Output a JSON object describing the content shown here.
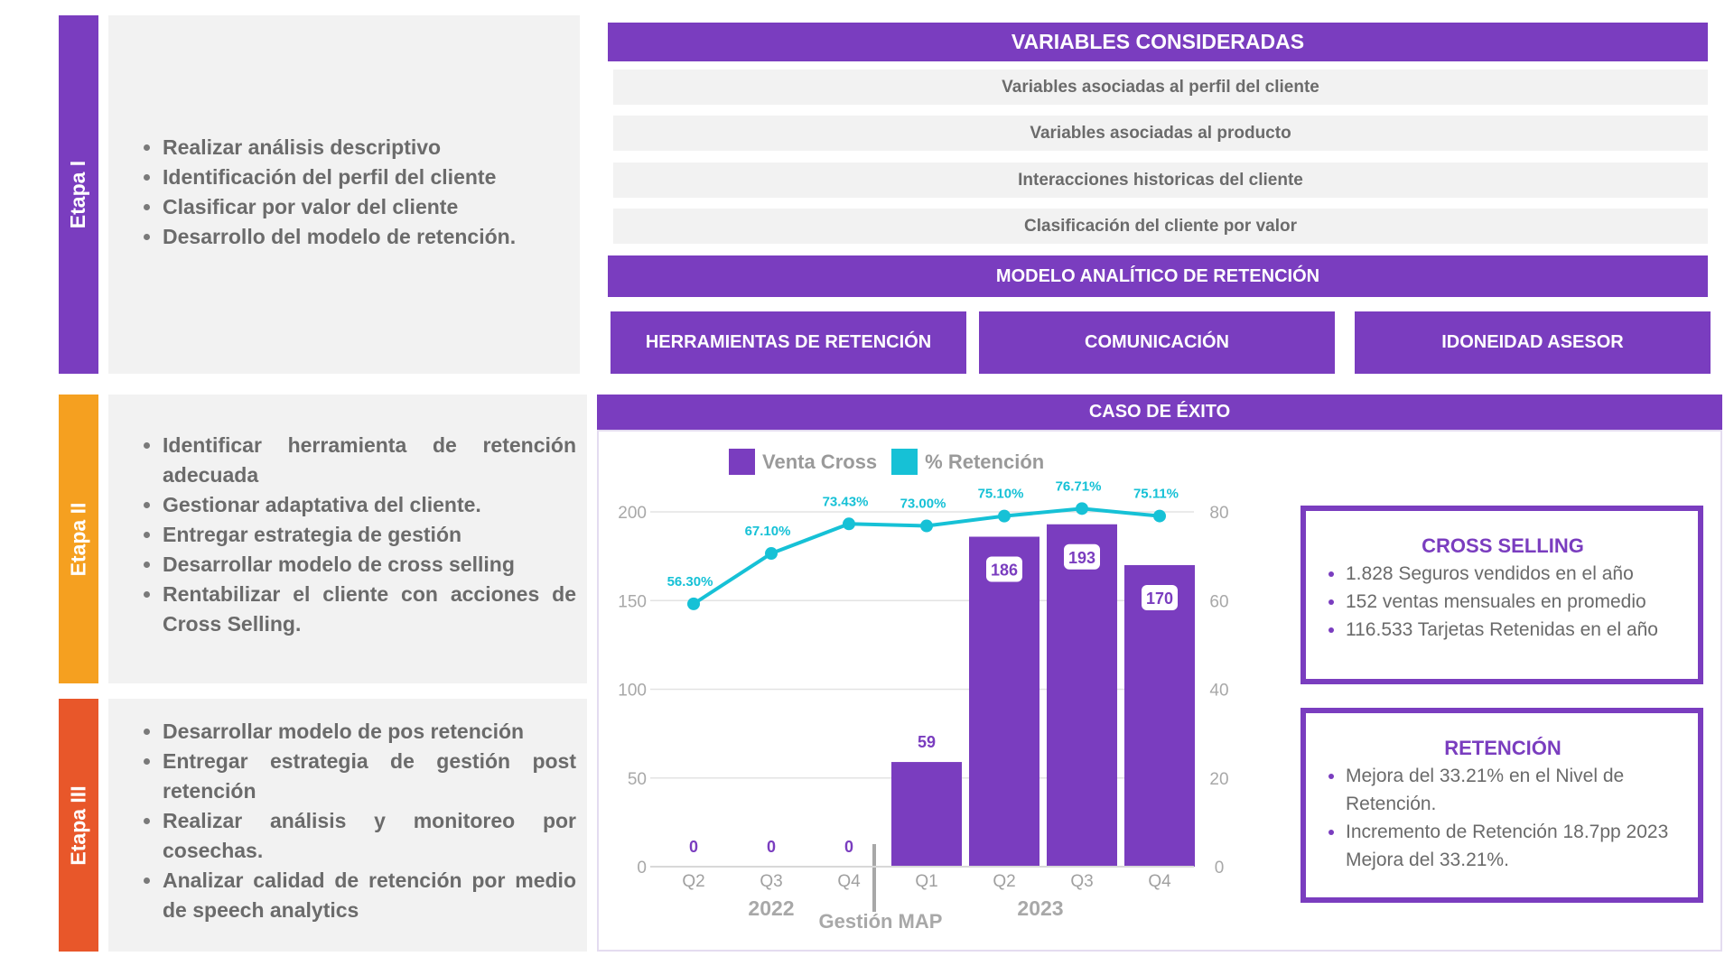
{
  "stages": [
    {
      "label": "Etapa I",
      "color": "#7a3dbf",
      "items": [
        "Realizar análisis descriptivo",
        "Identificación del perfil del cliente",
        "Clasificar por valor del cliente",
        "Desarrollo del modelo de retención."
      ]
    },
    {
      "label": "Etapa II",
      "color": "#f5a020",
      "items": [
        "Identificar herramienta de retención adecuada",
        "Gestionar adaptativa del cliente.",
        "Entregar estrategia de gestión",
        "Desarrollar modelo de cross selling",
        "Rentabilizar el cliente con acciones de Cross Selling."
      ]
    },
    {
      "label": "Etapa III",
      "color": "#e8572a",
      "items": [
        "Desarrollar modelo de pos retención",
        "Entregar estrategia de gestión post retención",
        "Realizar análisis y monitoreo por cosechas.",
        "Analizar calidad de retención por medio de speech analytics"
      ]
    }
  ],
  "variables": {
    "header": "VARIABLES CONSIDERADAS",
    "rows": [
      "Variables asociadas al perfil del cliente",
      "Variables asociadas al producto",
      "Interacciones historicas del cliente",
      "Clasificación del cliente por valor"
    ]
  },
  "model": {
    "header": "MODELO ANALÍTICO DE  RETENCIÓN",
    "tools": [
      "HERRAMIENTAS DE RETENCIÓN",
      "COMUNICACIÓN",
      "IDONEIDAD ASESOR"
    ]
  },
  "case": {
    "header": "CASO DE ÉXITO"
  },
  "chart_data": {
    "type": "bar",
    "categories": [
      "Q2",
      "Q3",
      "Q4",
      "Q1",
      "Q2",
      "Q3",
      "Q4"
    ],
    "year_groups": [
      {
        "label": "2022",
        "categories": [
          "Q2",
          "Q3",
          "Q4"
        ]
      },
      {
        "label": "2023",
        "categories": [
          "Q1",
          "Q2",
          "Q3",
          "Q4"
        ]
      }
    ],
    "separator_label": "Gestión MAP",
    "series": [
      {
        "name": "Venta Cross",
        "type": "bar",
        "axis": "left",
        "color": "#7a3dbf",
        "values": [
          0,
          0,
          0,
          59,
          186,
          193,
          170
        ],
        "labels": [
          "0",
          "0",
          "0",
          "59",
          "186",
          "193",
          "170"
        ]
      },
      {
        "name": "% Retención",
        "type": "line",
        "axis": "right",
        "color": "#16c1d6",
        "values": [
          56.3,
          67.1,
          73.43,
          73.0,
          75.1,
          76.71,
          75.11
        ],
        "labels": [
          "56.30%",
          "67.10%",
          "73.43%",
          "73.00%",
          "75.10%",
          "76.71%",
          "75.11%"
        ]
      }
    ],
    "y_left": {
      "min": 0,
      "max": 200,
      "ticks": [
        "0",
        "50",
        "100",
        "150",
        "200"
      ]
    },
    "y_right": {
      "min": 0,
      "max": 76,
      "ticks": [
        "0",
        "20",
        "40",
        "60",
        "80"
      ]
    },
    "grid": true,
    "legend": "top"
  },
  "kpis": [
    {
      "title": "CROSS SELLING",
      "items": [
        "1.828 Seguros vendidos en el año",
        "152 ventas mensuales en promedio",
        "116.533 Tarjetas Retenidas en el año"
      ]
    },
    {
      "title": "RETENCIÓN",
      "items": [
        "Mejora del 33.21% en el Nivel de Retención.",
        "Incremento de Retención 18.7pp 2023 Mejora del 33.21%."
      ]
    }
  ]
}
